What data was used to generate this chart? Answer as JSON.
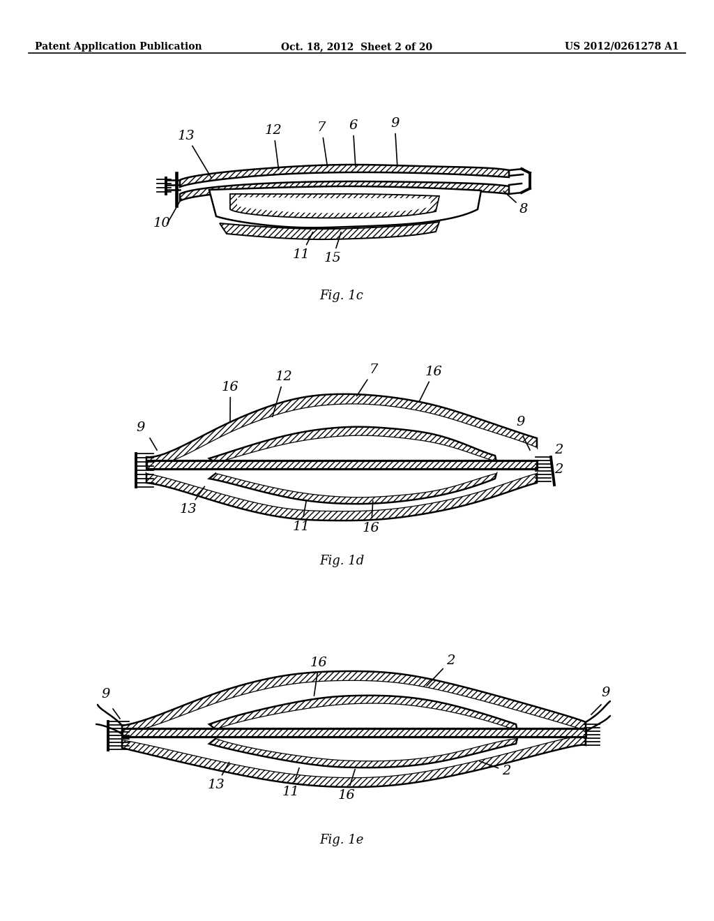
{
  "background_color": "#ffffff",
  "header_left": "Patent Application Publication",
  "header_center": "Oct. 18, 2012  Sheet 2 of 20",
  "header_right": "US 2012/0261278 A1",
  "header_fontsize": 11,
  "fig1c_caption": "Fig. 1c",
  "fig1d_caption": "Fig. 1d",
  "fig1e_caption": "Fig. 1e",
  "line_color": "#000000",
  "line_width": 1.8
}
